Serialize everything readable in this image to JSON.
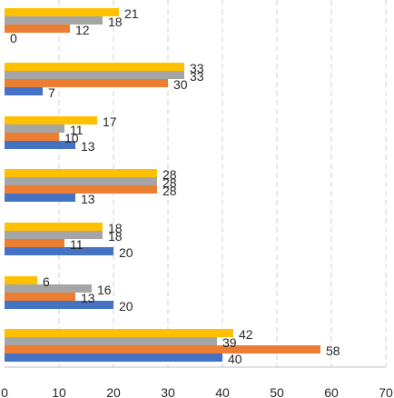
{
  "chart_data": {
    "type": "bar",
    "orientation": "horizontal",
    "x_ticks": [
      0,
      10,
      20,
      30,
      40,
      50,
      60,
      70
    ],
    "xlim": [
      0,
      70
    ],
    "grid": "vertical-dashed",
    "legend": "none",
    "series_colors": [
      "#4472C4",
      "#ED7D31",
      "#A5A5A5",
      "#FFC000"
    ],
    "groups": [
      {
        "values": [
          0,
          12,
          18,
          21
        ]
      },
      {
        "values": [
          7,
          30,
          33,
          33
        ]
      },
      {
        "values": [
          13,
          10,
          11,
          17
        ]
      },
      {
        "values": [
          13,
          28,
          28,
          28
        ]
      },
      {
        "values": [
          20,
          11,
          18,
          18
        ]
      },
      {
        "values": [
          20,
          13,
          16,
          6
        ]
      },
      {
        "values": [
          40,
          58,
          39,
          42
        ]
      }
    ],
    "labels": [
      [
        "0",
        "12",
        "18",
        "21"
      ],
      [
        "7",
        "30",
        "33",
        "33"
      ],
      [
        "13",
        "10",
        "11",
        "17"
      ],
      [
        "13",
        "28",
        "28",
        "28"
      ],
      [
        "20",
        "11",
        "18",
        "18"
      ],
      [
        "20",
        "13",
        "16",
        "6"
      ],
      [
        "40",
        "58",
        "39",
        "42"
      ]
    ]
  }
}
